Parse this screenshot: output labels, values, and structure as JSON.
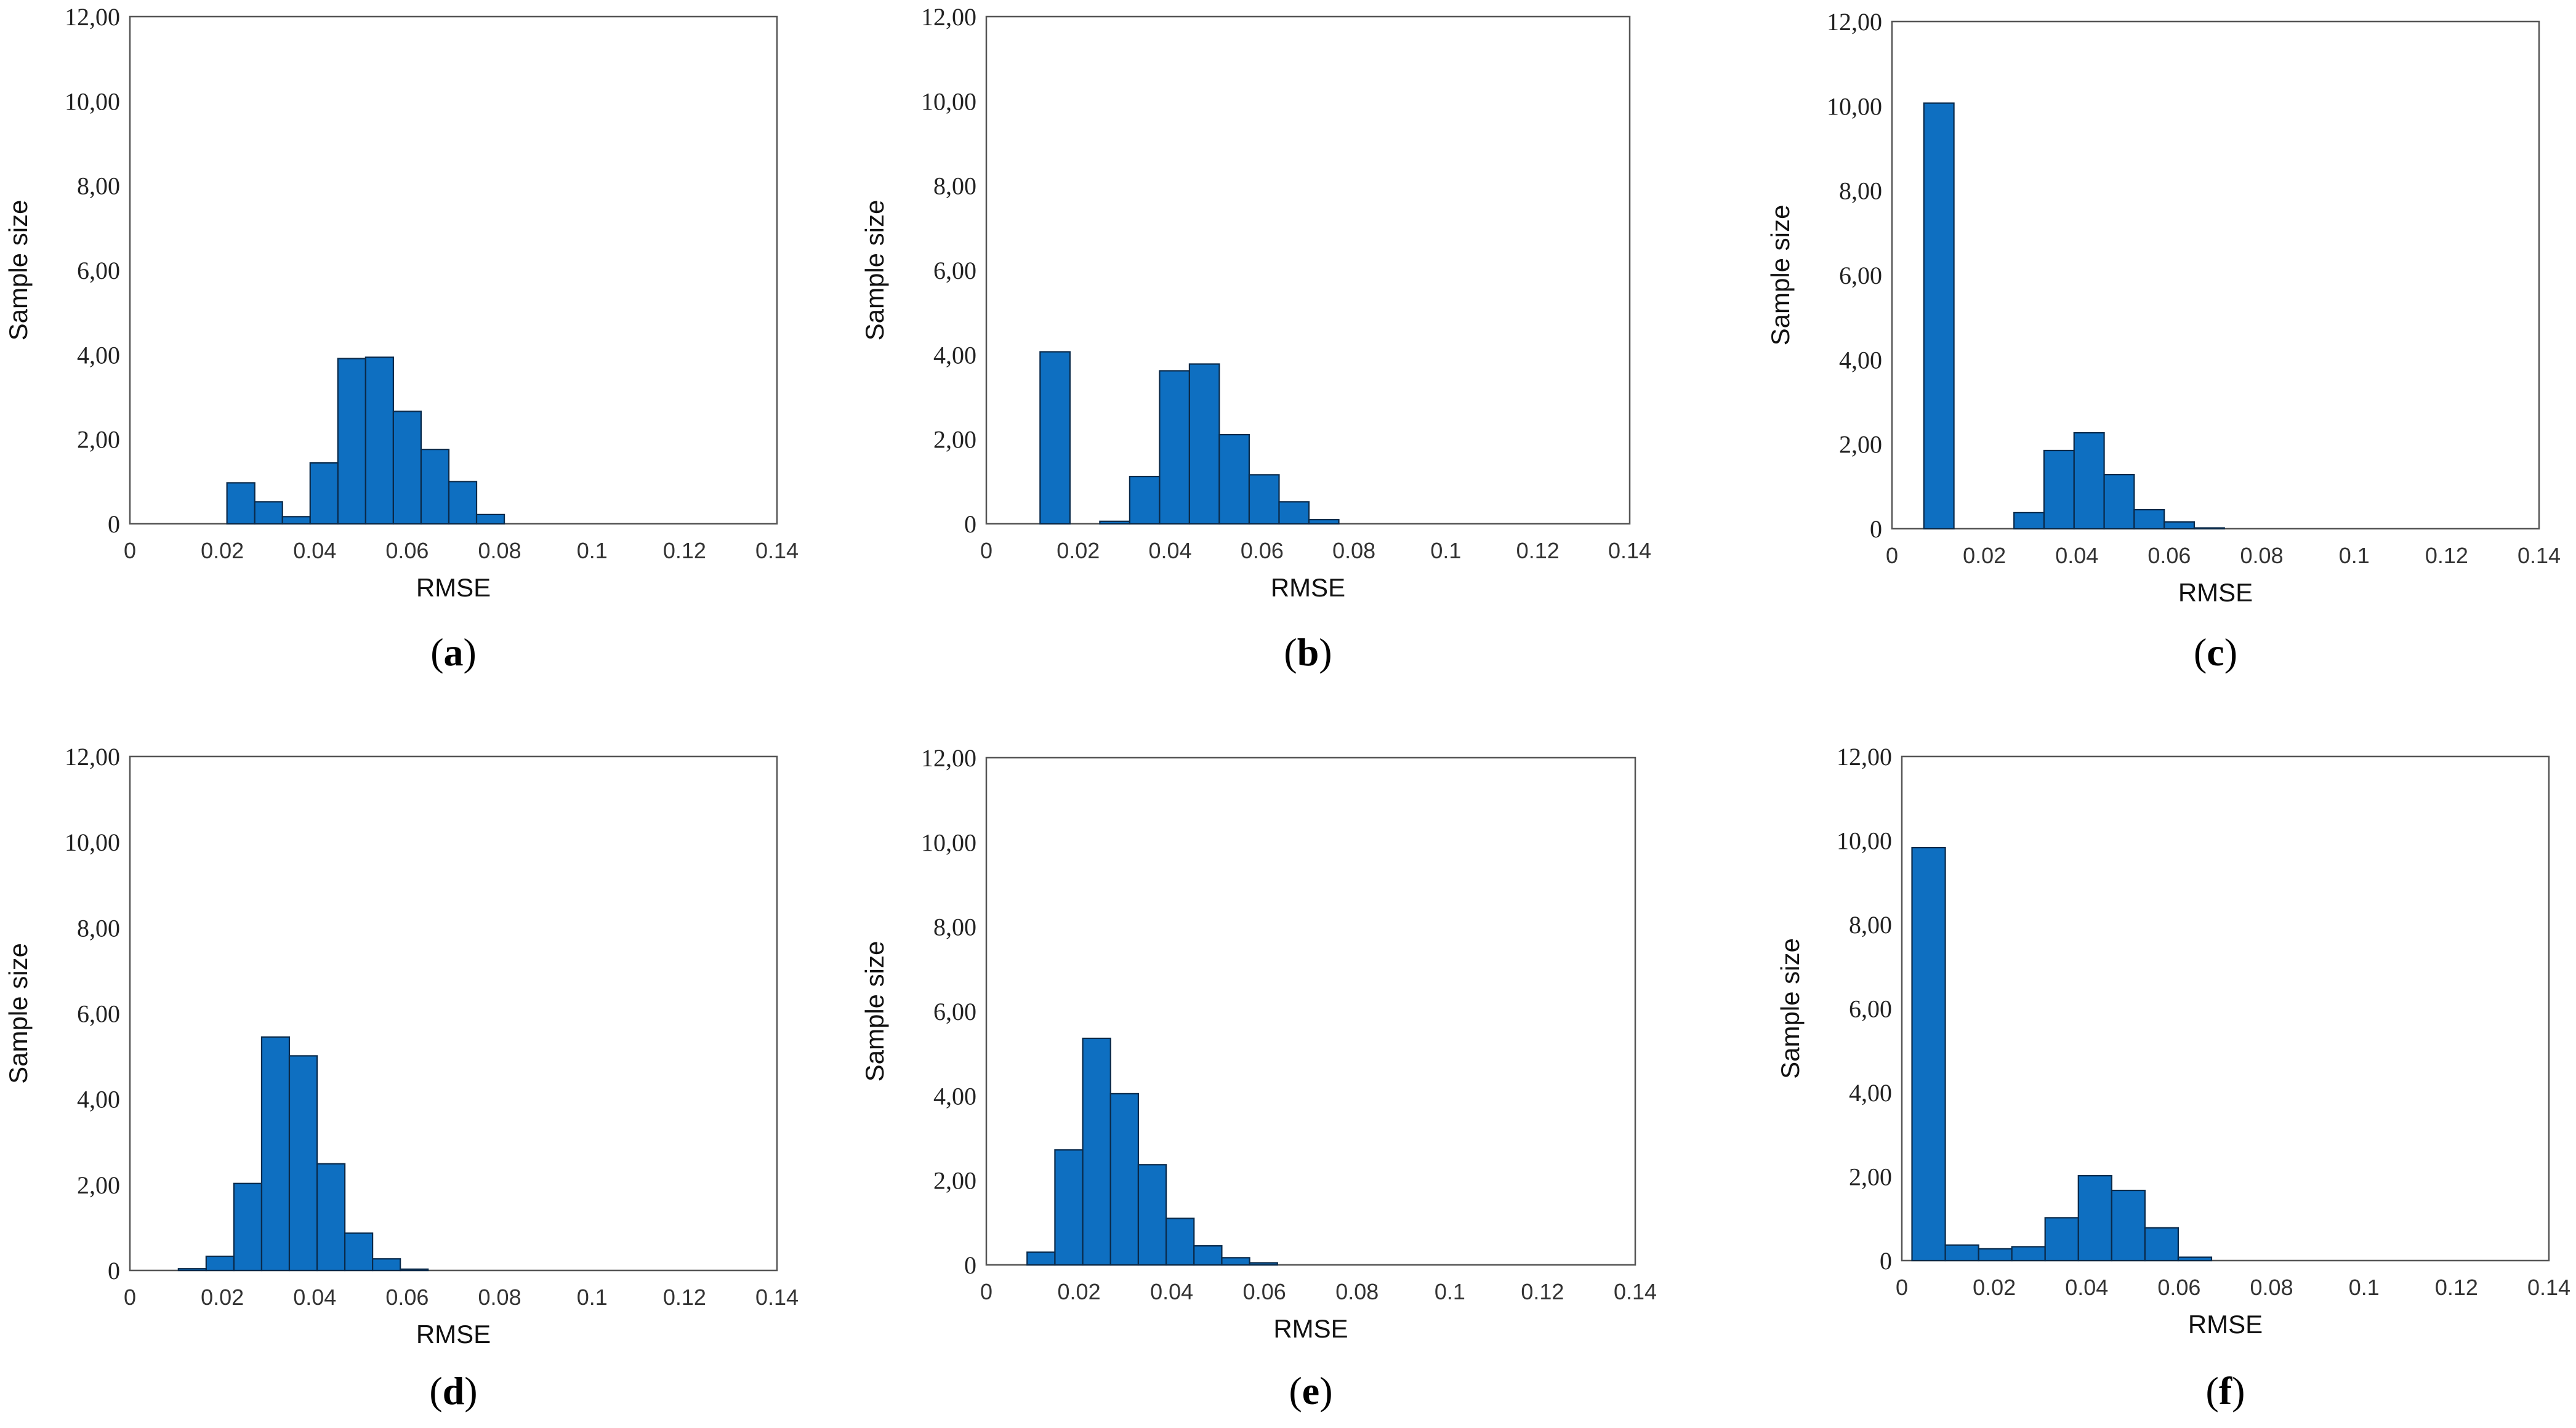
{
  "colors": {
    "bar": "#0E6FC1",
    "bar_edge": "#0A2A4A",
    "frame": "#555555"
  },
  "chart_data": [
    {
      "type": "bar",
      "panel": "a",
      "xlabel": "RMSE",
      "ylabel": "Sample size",
      "xlim": [
        0,
        0.14
      ],
      "ylim": [
        0,
        12
      ],
      "xticks": [
        "0",
        "0.02",
        "0.04",
        "0.06",
        "0.08",
        "0.1",
        "0.12",
        "0.14"
      ],
      "yticks": [
        "0",
        "2,00",
        "4,00",
        "6,00",
        "8,00",
        "10,00",
        "12,00"
      ],
      "bin_width": 0.006,
      "bins": [
        {
          "x0": 0.021,
          "value": 0.97
        },
        {
          "x0": 0.027,
          "value": 0.52
        },
        {
          "x0": 0.033,
          "value": 0.17
        },
        {
          "x0": 0.039,
          "value": 1.44
        },
        {
          "x0": 0.045,
          "value": 3.91
        },
        {
          "x0": 0.051,
          "value": 3.94
        },
        {
          "x0": 0.057,
          "value": 2.66
        },
        {
          "x0": 0.063,
          "value": 1.76
        },
        {
          "x0": 0.069,
          "value": 1.0
        },
        {
          "x0": 0.075,
          "value": 0.22
        }
      ]
    },
    {
      "type": "bar",
      "panel": "b",
      "xlabel": "RMSE",
      "ylabel": "Sample size",
      "xlim": [
        0,
        0.14
      ],
      "ylim": [
        0,
        12
      ],
      "xticks": [
        "0",
        "0.02",
        "0.04",
        "0.06",
        "0.08",
        "0.1",
        "0.12",
        "0.14"
      ],
      "yticks": [
        "0",
        "2,00",
        "4,00",
        "6,00",
        "8,00",
        "10,00",
        "12,00"
      ],
      "bin_width": 0.0065,
      "bins": [
        {
          "x0": 0.0117,
          "value": 4.07
        },
        {
          "x0": 0.0247,
          "value": 0.06
        },
        {
          "x0": 0.0312,
          "value": 1.12
        },
        {
          "x0": 0.0377,
          "value": 3.62
        },
        {
          "x0": 0.0442,
          "value": 3.78
        },
        {
          "x0": 0.0507,
          "value": 2.11
        },
        {
          "x0": 0.0572,
          "value": 1.16
        },
        {
          "x0": 0.0637,
          "value": 0.52
        },
        {
          "x0": 0.0702,
          "value": 0.1
        }
      ]
    },
    {
      "type": "bar",
      "panel": "c",
      "xlabel": "RMSE",
      "ylabel": "Sample size",
      "xlim": [
        0,
        0.14
      ],
      "ylim": [
        0,
        12
      ],
      "xticks": [
        "0",
        "0.02",
        "0.04",
        "0.06",
        "0.08",
        "0.1",
        "0.12",
        "0.14"
      ],
      "yticks": [
        "0",
        "2,00",
        "4,00",
        "6,00",
        "8,00",
        "10,00",
        "12,00"
      ],
      "bin_width": 0.0065,
      "bins": [
        {
          "x0": 0.0069,
          "value": 10.07
        },
        {
          "x0": 0.0264,
          "value": 0.38
        },
        {
          "x0": 0.0329,
          "value": 1.85
        },
        {
          "x0": 0.0394,
          "value": 2.27
        },
        {
          "x0": 0.0459,
          "value": 1.28
        },
        {
          "x0": 0.0524,
          "value": 0.45
        },
        {
          "x0": 0.0589,
          "value": 0.16
        },
        {
          "x0": 0.0654,
          "value": 0.02
        }
      ]
    },
    {
      "type": "bar",
      "panel": "d",
      "xlabel": "RMSE",
      "ylabel": "Sample size",
      "xlim": [
        0,
        0.14
      ],
      "ylim": [
        0,
        12
      ],
      "xticks": [
        "0",
        "0.02",
        "0.04",
        "0.06",
        "0.08",
        "0.1",
        "0.12",
        "0.14"
      ],
      "yticks": [
        "0",
        "2,00",
        "4,00",
        "6,00",
        "8,00",
        "10,00",
        "12,00"
      ],
      "bin_width": 0.006,
      "bins": [
        {
          "x0": 0.0105,
          "value": 0.04
        },
        {
          "x0": 0.0165,
          "value": 0.33
        },
        {
          "x0": 0.0225,
          "value": 2.03
        },
        {
          "x0": 0.0285,
          "value": 5.45
        },
        {
          "x0": 0.0345,
          "value": 5.01
        },
        {
          "x0": 0.0405,
          "value": 2.49
        },
        {
          "x0": 0.0465,
          "value": 0.87
        },
        {
          "x0": 0.0525,
          "value": 0.27
        },
        {
          "x0": 0.0585,
          "value": 0.03
        }
      ]
    },
    {
      "type": "bar",
      "panel": "e",
      "xlabel": "RMSE",
      "ylabel": "Sample size",
      "xlim": [
        0,
        0.14
      ],
      "ylim": [
        0,
        12
      ],
      "xticks": [
        "0",
        "0.02",
        "0.04",
        "0.06",
        "0.08",
        "0.1",
        "0.12",
        "0.14"
      ],
      "yticks": [
        "0",
        "2,00",
        "4,00",
        "6,00",
        "8,00",
        "10,00",
        "12,00"
      ],
      "bin_width": 0.006,
      "bins": [
        {
          "x0": 0.0088,
          "value": 0.3
        },
        {
          "x0": 0.0148,
          "value": 2.72
        },
        {
          "x0": 0.0208,
          "value": 5.36
        },
        {
          "x0": 0.0268,
          "value": 4.05
        },
        {
          "x0": 0.0328,
          "value": 2.37
        },
        {
          "x0": 0.0388,
          "value": 1.1
        },
        {
          "x0": 0.0448,
          "value": 0.45
        },
        {
          "x0": 0.0508,
          "value": 0.17
        },
        {
          "x0": 0.0568,
          "value": 0.05
        }
      ]
    },
    {
      "type": "bar",
      "panel": "f",
      "xlabel": "RMSE",
      "ylabel": "Sample size",
      "xlim": [
        0,
        0.14
      ],
      "ylim": [
        0,
        12
      ],
      "xticks": [
        "0",
        "0.02",
        "0.04",
        "0.06",
        "0.08",
        "0.1",
        "0.12",
        "0.14"
      ],
      "yticks": [
        "0",
        "2,00",
        "4,00",
        "6,00",
        "8,00",
        "10,00",
        "12,00"
      ],
      "bin_width": 0.0072,
      "bins": [
        {
          "x0": 0.0022,
          "value": 9.83
        },
        {
          "x0": 0.0094,
          "value": 0.37
        },
        {
          "x0": 0.0166,
          "value": 0.28
        },
        {
          "x0": 0.0238,
          "value": 0.33
        },
        {
          "x0": 0.031,
          "value": 1.02
        },
        {
          "x0": 0.0382,
          "value": 2.02
        },
        {
          "x0": 0.0454,
          "value": 1.67
        },
        {
          "x0": 0.0526,
          "value": 0.78
        },
        {
          "x0": 0.0598,
          "value": 0.08
        }
      ]
    }
  ]
}
